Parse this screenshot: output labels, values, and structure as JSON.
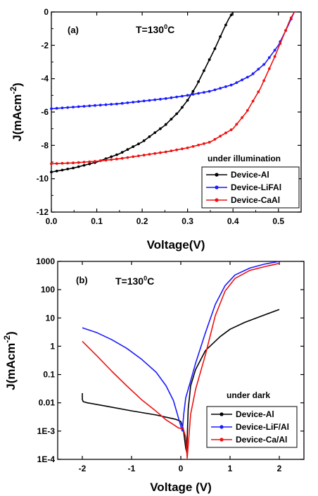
{
  "chart_data": [
    {
      "type": "line",
      "panel_label": "(a)",
      "annotation": "T=130",
      "annotation_sup": "0",
      "annotation_suffix": "C",
      "xlabel": "Voltage(V)",
      "ylabel_main": "J(mAcm",
      "ylabel_sup": "-2",
      "ylabel_end": ")",
      "xlim": [
        0.0,
        0.55
      ],
      "ylim": [
        -12,
        0
      ],
      "xticks": [
        "0.0",
        "0.1",
        "0.2",
        "0.3",
        "0.4",
        "0.5"
      ],
      "xtick_values": [
        0.0,
        0.1,
        0.2,
        0.3,
        0.4,
        0.5
      ],
      "yticks": [
        "0",
        "-2",
        "-4",
        "-6",
        "-8",
        "-10",
        "-12"
      ],
      "ytick_values": [
        0,
        -2,
        -4,
        -6,
        -8,
        -10,
        -12
      ],
      "legend_title": "under illumination",
      "legend_position": "lower-right",
      "series": [
        {
          "name": "Device-Al",
          "color": "#000000",
          "x": [
            0.0,
            0.05,
            0.1,
            0.15,
            0.2,
            0.25,
            0.28,
            0.3,
            0.32,
            0.34,
            0.36,
            0.38,
            0.39,
            0.4
          ],
          "y": [
            -9.6,
            -9.35,
            -9.0,
            -8.5,
            -7.8,
            -6.8,
            -6.0,
            -5.3,
            -4.4,
            -3.3,
            -2.2,
            -1.0,
            -0.45,
            0.0
          ]
        },
        {
          "name": "Device-LiFAl",
          "color": "#1a1aff",
          "x": [
            0.0,
            0.05,
            0.1,
            0.15,
            0.2,
            0.25,
            0.3,
            0.35,
            0.4,
            0.44,
            0.47,
            0.5,
            0.52,
            0.535
          ],
          "y": [
            -5.8,
            -5.7,
            -5.6,
            -5.5,
            -5.35,
            -5.2,
            -5.0,
            -4.75,
            -4.35,
            -3.8,
            -3.1,
            -2.0,
            -0.9,
            0.0
          ]
        },
        {
          "name": "Device-CaAl",
          "color": "#ee1111",
          "x": [
            0.0,
            0.05,
            0.1,
            0.15,
            0.2,
            0.25,
            0.3,
            0.35,
            0.4,
            0.43,
            0.46,
            0.49,
            0.51,
            0.525,
            0.535
          ],
          "y": [
            -9.1,
            -9.05,
            -8.95,
            -8.8,
            -8.6,
            -8.4,
            -8.15,
            -7.8,
            -7.0,
            -6.0,
            -4.6,
            -2.8,
            -1.5,
            -0.5,
            0.0
          ]
        }
      ]
    },
    {
      "type": "line",
      "panel_label": "(b)",
      "annotation": "T=130",
      "annotation_sup": "0",
      "annotation_suffix": "C",
      "xlabel": "Voltage (V)",
      "ylabel_main": "J(mAcm",
      "ylabel_sup": "-2",
      "ylabel_end": ")",
      "y_scale": "log",
      "xlim": [
        -2.5,
        2.5
      ],
      "ylim": [
        0.0001,
        1000
      ],
      "xticks": [
        "-2",
        "-1",
        "0",
        "1",
        "2"
      ],
      "xtick_values": [
        -2,
        -1,
        0,
        1,
        2
      ],
      "yticks": [
        "1000",
        "100",
        "10",
        "1",
        "0.1",
        "0.01",
        "1E-3",
        "1E-4"
      ],
      "ytick_values": [
        1000,
        100,
        10,
        1,
        0.1,
        0.01,
        0.001,
        0.0001
      ],
      "legend_title": "under dark",
      "legend_position": "lower-right",
      "series": [
        {
          "name": "Device-Al",
          "color": "#000000",
          "x": [
            -2.0,
            -2.0,
            -1.98,
            -1.9,
            -1.5,
            -1.0,
            -0.5,
            -0.1,
            0.0,
            0.05,
            0.1,
            0.12,
            0.15,
            0.2,
            0.3,
            0.5,
            0.8,
            1.0,
            1.3,
            1.6,
            2.0
          ],
          "y": [
            0.022,
            0.013,
            0.011,
            0.01,
            0.0075,
            0.0052,
            0.0037,
            0.0026,
            0.0022,
            0.0012,
            0.00025,
            0.00018,
            0.006,
            0.04,
            0.15,
            0.7,
            2.2,
            4.0,
            7.0,
            11.0,
            20.0
          ]
        },
        {
          "name": "Device-LiF/Al",
          "color": "#1a1aff",
          "x": [
            -2.0,
            -1.7,
            -1.4,
            -1.1,
            -0.8,
            -0.5,
            -0.3,
            -0.15,
            -0.05,
            0.0,
            0.03,
            0.06,
            0.1,
            0.2,
            0.3,
            0.5,
            0.7,
            0.9,
            1.1,
            1.4,
            1.7,
            2.0
          ],
          "y": [
            4.5,
            3.0,
            1.7,
            0.85,
            0.35,
            0.12,
            0.04,
            0.012,
            0.003,
            0.0015,
            0.001,
            0.004,
            0.015,
            0.06,
            0.25,
            3.0,
            30.0,
            140.0,
            330.0,
            580.0,
            800.0,
            1000.0
          ]
        },
        {
          "name": "Device-Ca/Al",
          "color": "#ee1111",
          "x": [
            -2.0,
            -1.7,
            -1.4,
            -1.1,
            -0.8,
            -0.5,
            -0.3,
            -0.15,
            -0.05,
            0.05,
            0.1,
            0.13,
            0.2,
            0.3,
            0.5,
            0.7,
            0.9,
            1.1,
            1.4,
            1.7,
            2.0
          ],
          "y": [
            1.5,
            0.45,
            0.13,
            0.04,
            0.013,
            0.005,
            0.0025,
            0.0017,
            0.0013,
            0.0012,
            0.0006,
            0.00011,
            0.004,
            0.03,
            0.5,
            12.0,
            90.0,
            250.0,
            480.0,
            650.0,
            850.0
          ]
        }
      ]
    }
  ]
}
